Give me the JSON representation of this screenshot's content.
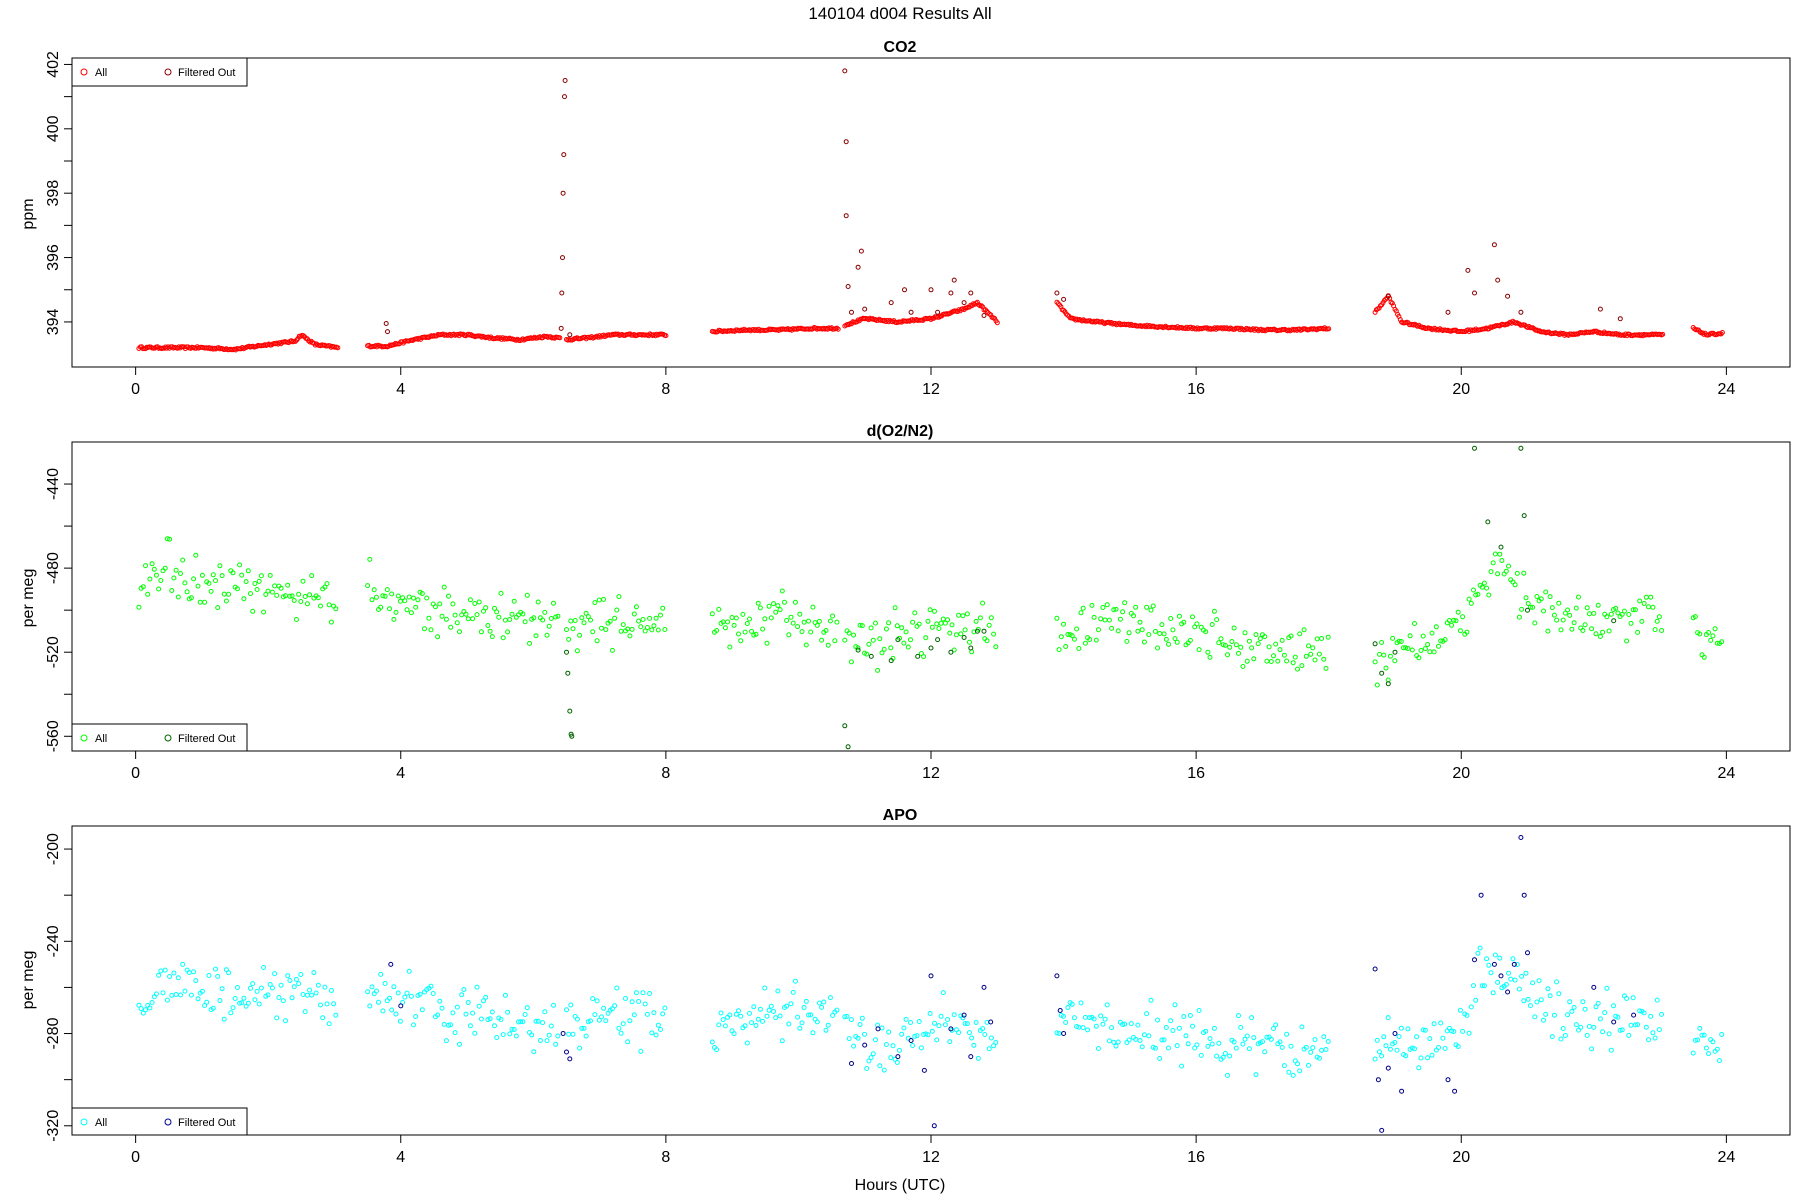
{
  "figure": {
    "title": "140104   d004   Results All",
    "xlabel": "Hours (UTC)"
  },
  "chart_data": [
    {
      "type": "scatter",
      "title": "CO2",
      "xlabel": "",
      "ylabel": "ppm",
      "xlim": [
        -0.96,
        24.96
      ],
      "ylim": [
        392.6,
        402.2
      ],
      "xticks": [
        0,
        4,
        8,
        12,
        16,
        20,
        24
      ],
      "yticks": [
        394,
        396,
        398,
        400,
        402
      ],
      "legend_position": "top-left",
      "legend": [
        "All",
        "Filtered Out"
      ],
      "colors": {
        "all": "#ff0000",
        "filtered": "#8b0000"
      },
      "segments": [
        {
          "x": [
            0.05,
            0.5,
            1.0,
            1.5,
            2.0,
            2.4,
            2.5,
            2.7,
            3.05
          ],
          "y": [
            393.2,
            393.2,
            393.2,
            393.15,
            393.3,
            393.4,
            393.6,
            393.3,
            393.2
          ]
        },
        {
          "x": [
            3.5,
            3.8,
            4.2,
            4.6,
            5.0,
            5.4,
            5.8,
            6.2,
            6.4
          ],
          "y": [
            393.25,
            393.25,
            393.45,
            393.6,
            393.6,
            393.5,
            393.45,
            393.55,
            393.5
          ]
        },
        {
          "x": [
            6.5,
            6.8,
            7.2,
            7.6,
            8.0
          ],
          "y": [
            393.45,
            393.5,
            393.6,
            393.6,
            393.6
          ]
        },
        {
          "x": [
            8.7,
            9.2,
            9.7,
            10.2,
            10.6
          ],
          "y": [
            393.7,
            393.75,
            393.75,
            393.8,
            393.8
          ]
        },
        {
          "x": [
            10.7,
            11.0,
            11.5,
            12.0,
            12.5,
            12.7,
            13.0
          ],
          "y": [
            393.9,
            394.1,
            394.0,
            394.1,
            394.4,
            394.6,
            394.0
          ]
        },
        {
          "x": [
            13.9,
            14.1,
            14.5,
            15.0,
            15.5,
            16.0,
            16.5,
            17.0,
            17.5,
            18.0
          ],
          "y": [
            394.6,
            394.1,
            394.0,
            393.9,
            393.85,
            393.8,
            393.8,
            393.75,
            393.75,
            393.8
          ]
        },
        {
          "x": [
            18.7,
            18.9,
            19.1,
            19.5,
            20.0,
            20.4,
            20.8,
            21.2,
            21.6,
            22.0,
            22.4,
            22.8,
            23.05
          ],
          "y": [
            394.3,
            394.8,
            394.0,
            393.8,
            393.7,
            393.8,
            394.0,
            393.7,
            393.6,
            393.7,
            393.6,
            393.6,
            393.6
          ]
        },
        {
          "x": [
            23.5,
            23.7,
            23.95
          ],
          "y": [
            393.8,
            393.6,
            393.65
          ]
        }
      ],
      "jitter": 0,
      "filtered_points": [
        {
          "x": 3.78,
          "y": 393.95
        },
        {
          "x": 3.8,
          "y": 393.7
        },
        {
          "x": 6.42,
          "y": 393.8
        },
        {
          "x": 6.43,
          "y": 394.9
        },
        {
          "x": 6.44,
          "y": 396.0
        },
        {
          "x": 6.45,
          "y": 398.0
        },
        {
          "x": 6.46,
          "y": 399.2
        },
        {
          "x": 6.47,
          "y": 401.0
        },
        {
          "x": 6.48,
          "y": 401.5
        },
        {
          "x": 6.55,
          "y": 393.6
        },
        {
          "x": 10.7,
          "y": 401.8
        },
        {
          "x": 10.72,
          "y": 399.6
        },
        {
          "x": 10.72,
          "y": 397.3
        },
        {
          "x": 10.75,
          "y": 395.1
        },
        {
          "x": 10.8,
          "y": 394.3
        },
        {
          "x": 10.9,
          "y": 395.7
        },
        {
          "x": 10.95,
          "y": 396.2
        },
        {
          "x": 11.0,
          "y": 394.4
        },
        {
          "x": 11.4,
          "y": 394.6
        },
        {
          "x": 11.6,
          "y": 395.0
        },
        {
          "x": 11.7,
          "y": 394.3
        },
        {
          "x": 12.0,
          "y": 395.0
        },
        {
          "x": 12.1,
          "y": 394.3
        },
        {
          "x": 12.3,
          "y": 394.9
        },
        {
          "x": 12.35,
          "y": 395.3
        },
        {
          "x": 12.5,
          "y": 394.6
        },
        {
          "x": 12.6,
          "y": 394.9
        },
        {
          "x": 12.8,
          "y": 394.2
        },
        {
          "x": 13.9,
          "y": 394.9
        },
        {
          "x": 14.0,
          "y": 394.7
        },
        {
          "x": 18.9,
          "y": 394.8
        },
        {
          "x": 19.8,
          "y": 394.3
        },
        {
          "x": 20.1,
          "y": 395.6
        },
        {
          "x": 20.2,
          "y": 394.9
        },
        {
          "x": 20.5,
          "y": 396.4
        },
        {
          "x": 20.55,
          "y": 395.3
        },
        {
          "x": 20.7,
          "y": 394.8
        },
        {
          "x": 20.9,
          "y": 394.3
        },
        {
          "x": 22.1,
          "y": 394.4
        },
        {
          "x": 22.4,
          "y": 394.1
        }
      ]
    },
    {
      "type": "scatter",
      "title": "d(O2/N2)",
      "xlabel": "",
      "ylabel": "per meg",
      "xlim": [
        -0.96,
        24.96
      ],
      "ylim": [
        -567,
        -420
      ],
      "xticks": [
        0,
        4,
        8,
        12,
        16,
        20,
        24
      ],
      "yticks": [
        -560,
        -520,
        -480,
        -440
      ],
      "legend_position": "bottom-left",
      "legend": [
        "All",
        "Filtered Out"
      ],
      "colors": {
        "all": "#00ff00",
        "filtered": "#006400"
      },
      "segments": [
        {
          "x": [
            0.05,
            0.5,
            1.0,
            1.5,
            2.0,
            2.5,
            3.05
          ],
          "y": [
            -495,
            -480,
            -490,
            -490,
            -492,
            -492,
            -495
          ]
        },
        {
          "x": [
            3.5,
            4.0,
            4.5,
            5.0,
            5.5,
            6.0,
            6.4
          ],
          "y": [
            -490,
            -495,
            -500,
            -503,
            -504,
            -505,
            -503
          ]
        },
        {
          "x": [
            6.5,
            7.0,
            7.5,
            8.0
          ],
          "y": [
            -508,
            -505,
            -505,
            -505
          ]
        },
        {
          "x": [
            8.7,
            9.2,
            9.7,
            10.2,
            10.6
          ],
          "y": [
            -510,
            -508,
            -505,
            -505,
            -510
          ]
        },
        {
          "x": [
            10.7,
            11.2,
            11.7,
            12.2,
            12.7,
            13.0
          ],
          "y": [
            -515,
            -515,
            -510,
            -505,
            -510,
            -510
          ]
        },
        {
          "x": [
            13.9,
            14.5,
            15.0,
            15.5,
            16.0,
            16.5,
            17.0,
            17.5,
            18.0
          ],
          "y": [
            -510,
            -508,
            -505,
            -508,
            -512,
            -515,
            -518,
            -520,
            -520
          ]
        },
        {
          "x": [
            18.7,
            19.2,
            19.7,
            20.0,
            20.3,
            20.6,
            21.0,
            21.5,
            22.0,
            22.5,
            23.05
          ],
          "y": [
            -525,
            -515,
            -515,
            -510,
            -485,
            -478,
            -495,
            -505,
            -505,
            -505,
            -505
          ]
        },
        {
          "x": [
            23.5,
            23.95
          ],
          "y": [
            -510,
            -512
          ]
        }
      ],
      "jitter": 10,
      "filtered_points": [
        {
          "x": 6.5,
          "y": -520
        },
        {
          "x": 6.52,
          "y": -530
        },
        {
          "x": 6.55,
          "y": -548
        },
        {
          "x": 6.57,
          "y": -559
        },
        {
          "x": 6.58,
          "y": -560
        },
        {
          "x": 10.7,
          "y": -555
        },
        {
          "x": 10.75,
          "y": -565
        },
        {
          "x": 10.9,
          "y": -519
        },
        {
          "x": 11.1,
          "y": -522
        },
        {
          "x": 11.4,
          "y": -524
        },
        {
          "x": 11.5,
          "y": -514
        },
        {
          "x": 11.8,
          "y": -522
        },
        {
          "x": 12.0,
          "y": -518
        },
        {
          "x": 12.1,
          "y": -514
        },
        {
          "x": 12.3,
          "y": -520
        },
        {
          "x": 12.5,
          "y": -513
        },
        {
          "x": 12.6,
          "y": -518
        },
        {
          "x": 12.7,
          "y": -510
        },
        {
          "x": 12.8,
          "y": -510
        },
        {
          "x": 18.7,
          "y": -516
        },
        {
          "x": 18.8,
          "y": -530
        },
        {
          "x": 18.9,
          "y": -535
        },
        {
          "x": 19.0,
          "y": -520
        },
        {
          "x": 20.2,
          "y": -423
        },
        {
          "x": 20.4,
          "y": -458
        },
        {
          "x": 20.6,
          "y": -470
        },
        {
          "x": 20.9,
          "y": -423
        },
        {
          "x": 20.95,
          "y": -455
        },
        {
          "x": 21.0,
          "y": -500
        },
        {
          "x": 22.3,
          "y": -505
        }
      ]
    },
    {
      "type": "scatter",
      "title": "APO",
      "xlabel": "",
      "ylabel": "per meg",
      "xlim": [
        -0.96,
        24.96
      ],
      "ylim": [
        -324,
        -190
      ],
      "xticks": [
        0,
        4,
        8,
        12,
        16,
        20,
        24
      ],
      "yticks": [
        -320,
        -280,
        -240,
        -200
      ],
      "legend_position": "bottom-left",
      "legend": [
        "All",
        "Filtered Out"
      ],
      "colors": {
        "all": "#00ffff",
        "filtered": "#00008b"
      },
      "segments": [
        {
          "x": [
            0.05,
            0.5,
            1.0,
            1.5,
            2.0,
            2.5,
            3.05
          ],
          "y": [
            -268,
            -255,
            -262,
            -265,
            -265,
            -263,
            -265
          ]
        },
        {
          "x": [
            3.5,
            4.0,
            4.5,
            5.0,
            5.5,
            6.0,
            6.4
          ],
          "y": [
            -262,
            -265,
            -270,
            -272,
            -275,
            -277,
            -278
          ]
        },
        {
          "x": [
            6.5,
            7.0,
            7.5,
            8.0
          ],
          "y": [
            -278,
            -272,
            -272,
            -275
          ]
        },
        {
          "x": [
            8.7,
            9.2,
            9.7,
            10.2,
            10.6
          ],
          "y": [
            -280,
            -276,
            -272,
            -270,
            -275
          ]
        },
        {
          "x": [
            10.7,
            11.2,
            11.7,
            12.2,
            12.7,
            13.0
          ],
          "y": [
            -280,
            -285,
            -280,
            -275,
            -278,
            -278
          ]
        },
        {
          "x": [
            13.9,
            14.5,
            15.0,
            15.5,
            16.0,
            16.5,
            17.0,
            17.5,
            18.0
          ],
          "y": [
            -272,
            -278,
            -278,
            -278,
            -283,
            -285,
            -285,
            -288,
            -287
          ]
        },
        {
          "x": [
            18.7,
            19.2,
            19.7,
            20.0,
            20.3,
            20.6,
            21.0,
            21.5,
            22.0,
            22.5,
            23.05
          ],
          "y": [
            -285,
            -285,
            -285,
            -275,
            -255,
            -250,
            -262,
            -272,
            -275,
            -275,
            -272
          ]
        },
        {
          "x": [
            23.5,
            23.95
          ],
          "y": [
            -282,
            -283
          ]
        }
      ],
      "jitter": 10,
      "filtered_points": [
        {
          "x": 3.85,
          "y": -250
        },
        {
          "x": 4.0,
          "y": -268
        },
        {
          "x": 6.45,
          "y": -280
        },
        {
          "x": 6.5,
          "y": -288
        },
        {
          "x": 6.55,
          "y": -291
        },
        {
          "x": 10.8,
          "y": -293
        },
        {
          "x": 11.0,
          "y": -285
        },
        {
          "x": 11.2,
          "y": -278
        },
        {
          "x": 11.5,
          "y": -290
        },
        {
          "x": 11.7,
          "y": -283
        },
        {
          "x": 11.9,
          "y": -296
        },
        {
          "x": 12.0,
          "y": -255
        },
        {
          "x": 12.05,
          "y": -320
        },
        {
          "x": 12.3,
          "y": -278
        },
        {
          "x": 12.5,
          "y": -272
        },
        {
          "x": 12.6,
          "y": -290
        },
        {
          "x": 12.8,
          "y": -260
        },
        {
          "x": 12.9,
          "y": -275
        },
        {
          "x": 13.9,
          "y": -255
        },
        {
          "x": 13.95,
          "y": -270
        },
        {
          "x": 14.0,
          "y": -280
        },
        {
          "x": 18.7,
          "y": -252
        },
        {
          "x": 18.75,
          "y": -300
        },
        {
          "x": 18.8,
          "y": -322
        },
        {
          "x": 18.9,
          "y": -295
        },
        {
          "x": 19.0,
          "y": -280
        },
        {
          "x": 19.1,
          "y": -305
        },
        {
          "x": 19.8,
          "y": -300
        },
        {
          "x": 19.9,
          "y": -305
        },
        {
          "x": 20.2,
          "y": -248
        },
        {
          "x": 20.3,
          "y": -220
        },
        {
          "x": 20.5,
          "y": -250
        },
        {
          "x": 20.6,
          "y": -255
        },
        {
          "x": 20.7,
          "y": -262
        },
        {
          "x": 20.8,
          "y": -250
        },
        {
          "x": 20.9,
          "y": -195
        },
        {
          "x": 20.95,
          "y": -220
        },
        {
          "x": 21.0,
          "y": -245
        },
        {
          "x": 22.0,
          "y": -260
        },
        {
          "x": 22.3,
          "y": -275
        },
        {
          "x": 22.6,
          "y": -272
        }
      ]
    }
  ]
}
